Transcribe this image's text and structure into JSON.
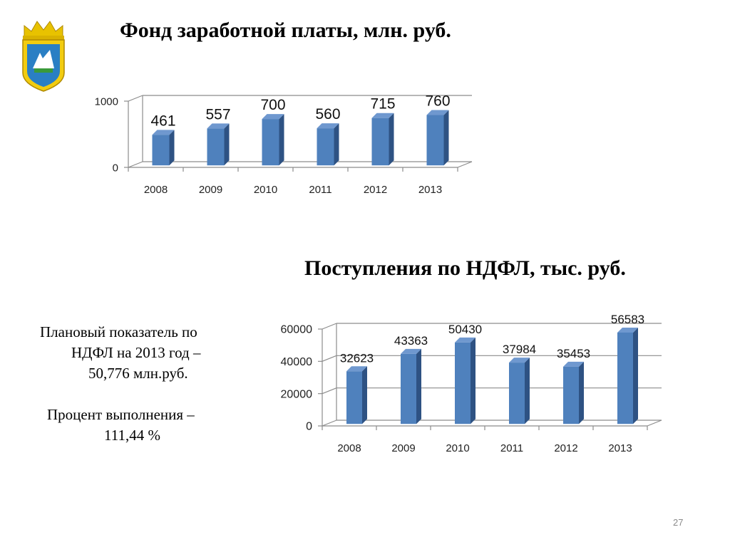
{
  "slide": {
    "title_1": "Фонд заработной платы, млн. руб.",
    "title_2": "Поступления по НДФЛ, тыс. руб.",
    "note": {
      "line1": "Плановый показатель по",
      "line2": "НДФЛ на 2013 год –",
      "line3": "50,776 млн.руб.",
      "line4": "Процент выполнения –",
      "line5": "111,44 %"
    },
    "page_number": "27"
  },
  "colors": {
    "bar_front": "#4f81bd",
    "bar_side": "#2e5283",
    "bar_top": "#6f98cf",
    "grid": "#8c8c8c"
  },
  "icons": [
    "coat-of-arms-icon"
  ],
  "chart_data": [
    {
      "type": "bar",
      "title": "Фонд заработной платы, млн. руб.",
      "categories": [
        "2008",
        "2009",
        "2010",
        "2011",
        "2012",
        "2013"
      ],
      "values": [
        461,
        557,
        700,
        560,
        715,
        760
      ],
      "ylim": [
        0,
        1000
      ],
      "yticks": [
        "0",
        "1000"
      ],
      "grid": true,
      "legend": "none"
    },
    {
      "type": "bar",
      "title": "Поступления по НДФЛ, тыс. руб.",
      "categories": [
        "2008",
        "2009",
        "2010",
        "2011",
        "2012",
        "2013"
      ],
      "values": [
        32623,
        43363,
        50430,
        37984,
        35453,
        56583
      ],
      "ylim": [
        0,
        60000
      ],
      "yticks": [
        "0",
        "20000",
        "40000",
        "60000"
      ],
      "grid": true,
      "legend": "none"
    }
  ]
}
